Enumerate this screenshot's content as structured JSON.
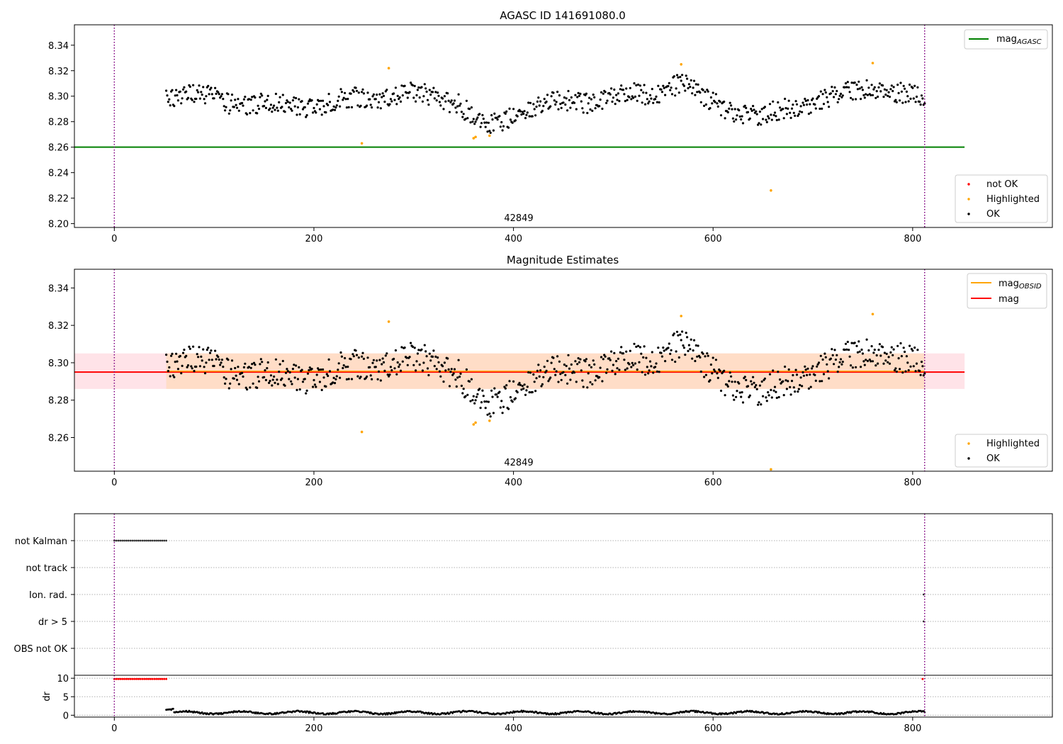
{
  "colors": {
    "ok": "#000000",
    "highlighted": "#ffa500",
    "not_ok": "#ff0000",
    "mag_agasc": "#008000",
    "mag_obsid": "#ffa500",
    "mag": "#ff0000",
    "band_mag": "#ffc0cb",
    "band_obsid": "#ffdab9",
    "vline": "#800080",
    "grid": "#b0b0b0"
  },
  "chart_data": [
    {
      "type": "scatter",
      "title": "AGASC ID 141691080.0",
      "annotation": "42849",
      "xlim": [
        -40,
        940
      ],
      "ylim": [
        8.197,
        8.356
      ],
      "x_ticks": [
        0,
        200,
        400,
        600,
        800
      ],
      "y_ticks": [
        8.2,
        8.22,
        8.24,
        8.26,
        8.28,
        8.3,
        8.32,
        8.34
      ],
      "y_tick_labels": [
        "8.20",
        "8.22",
        "8.24",
        "8.26",
        "8.28",
        "8.30",
        "8.32",
        "8.34"
      ],
      "vlines": [
        0,
        812
      ],
      "hlines": [
        {
          "name": "mag_AGASC",
          "y": 8.26,
          "x": [
            -40,
            852
          ]
        }
      ],
      "series_line": {
        "label": "mag",
        "subscript": "AGASC"
      },
      "legend_points": [
        "not OK",
        "Highlighted",
        "OK"
      ],
      "ok_points": {
        "x_range": [
          52,
          812
        ],
        "y_base": 8.296
      },
      "highlighted": [
        [
          248,
          8.263
        ],
        [
          275,
          8.322
        ],
        [
          360,
          8.267
        ],
        [
          362,
          8.268
        ],
        [
          376,
          8.269
        ],
        [
          568,
          8.325
        ],
        [
          658,
          8.226
        ],
        [
          760,
          8.326
        ]
      ]
    },
    {
      "type": "scatter",
      "title": "Magnitude Estimates",
      "annotation": "42849",
      "xlim": [
        -40,
        940
      ],
      "ylim": [
        8.242,
        8.35
      ],
      "x_ticks": [
        0,
        200,
        400,
        600,
        800
      ],
      "y_ticks": [
        8.26,
        8.28,
        8.3,
        8.32,
        8.34
      ],
      "y_tick_labels": [
        "8.26",
        "8.28",
        "8.30",
        "8.32",
        "8.34"
      ],
      "vlines": [
        0,
        812
      ],
      "bands": [
        {
          "name": "mag",
          "y": [
            8.286,
            8.305
          ],
          "x": [
            -40,
            852
          ]
        },
        {
          "name": "mag_OBSID",
          "y": [
            8.286,
            8.305
          ],
          "x": [
            52,
            812
          ]
        }
      ],
      "hlines": [
        {
          "name": "mag",
          "y": 8.295,
          "x": [
            -40,
            852
          ]
        }
      ],
      "series_lines": [
        {
          "label": "mag",
          "subscript": "OBSID"
        },
        {
          "label": "mag",
          "subscript": ""
        }
      ],
      "legend_points": [
        "Highlighted",
        "OK"
      ],
      "ok_points": {
        "x_range": [
          52,
          812
        ],
        "y_base": 8.296
      },
      "highlighted": [
        [
          248,
          8.263
        ],
        [
          275,
          8.322
        ],
        [
          360,
          8.267
        ],
        [
          362,
          8.268
        ],
        [
          376,
          8.269
        ],
        [
          568,
          8.325
        ],
        [
          658,
          8.243
        ],
        [
          760,
          8.326
        ]
      ]
    },
    {
      "type": "scatter",
      "title": "",
      "xlim": [
        -40,
        940
      ],
      "categories": [
        "not Kalman",
        "not track",
        "Ion. rad.",
        "dr > 5",
        "OBS not OK"
      ],
      "vlines": [
        0,
        812
      ],
      "flag_points": {
        "not Kalman": {
          "x_range": [
            0,
            52
          ],
          "step": 2
        },
        "Ion. rad.": {
          "x": [
            811
          ]
        },
        "dr > 5": {
          "x": [
            811
          ]
        }
      }
    },
    {
      "type": "scatter",
      "title": "",
      "ylabel": "dr",
      "xlim": [
        -40,
        940
      ],
      "ylim": [
        -0.5,
        10.8
      ],
      "x_ticks": [
        0,
        200,
        400,
        600,
        800
      ],
      "y_ticks": [
        0,
        5,
        10
      ],
      "y_tick_labels": [
        "0",
        "5",
        "10"
      ],
      "vlines": [
        0,
        812
      ],
      "not_ok_points": {
        "x_range": [
          0,
          52
        ],
        "step": 2,
        "y": 9.8,
        "extra_x": [
          810
        ]
      },
      "ok_points": {
        "x_range": [
          52,
          812
        ],
        "y_base": 0.7
      }
    }
  ]
}
